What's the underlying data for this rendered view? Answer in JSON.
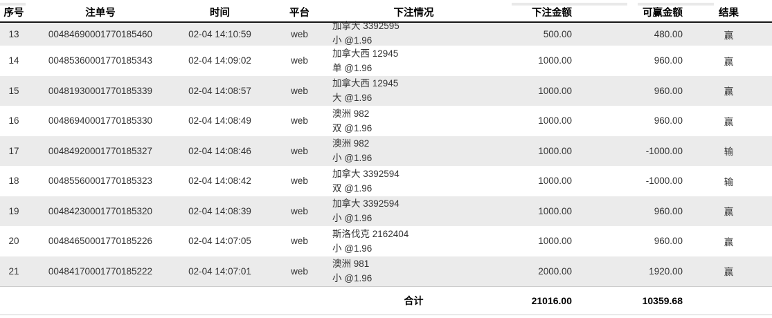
{
  "table": {
    "columns": [
      {
        "key": "seq",
        "label": "序号"
      },
      {
        "key": "bet_id",
        "label": "注单号"
      },
      {
        "key": "time",
        "label": "时间"
      },
      {
        "key": "platform",
        "label": "平台"
      },
      {
        "key": "detail",
        "label": "下注情况"
      },
      {
        "key": "amount",
        "label": "下注金额"
      },
      {
        "key": "winnable",
        "label": "可赢金额"
      },
      {
        "key": "result",
        "label": "结果"
      }
    ],
    "rows": [
      {
        "seq": "13",
        "bet_id": "00484690001770185460",
        "time": "02-04 14:10:59",
        "platform": "web",
        "detail": [
          "加拿大 3392595",
          "小 @1.96"
        ],
        "amount": "500.00",
        "winnable": "480.00",
        "result": "赢"
      },
      {
        "seq": "14",
        "bet_id": "00485360001770185343",
        "time": "02-04 14:09:02",
        "platform": "web",
        "detail": [
          "加拿大西 12945",
          "单 @1.96"
        ],
        "amount": "1000.00",
        "winnable": "960.00",
        "result": "赢"
      },
      {
        "seq": "15",
        "bet_id": "00481930001770185339",
        "time": "02-04 14:08:57",
        "platform": "web",
        "detail": [
          "加拿大西 12945",
          "大 @1.96"
        ],
        "amount": "1000.00",
        "winnable": "960.00",
        "result": "赢"
      },
      {
        "seq": "16",
        "bet_id": "00486940001770185330",
        "time": "02-04 14:08:49",
        "platform": "web",
        "detail": [
          "澳洲 982",
          "双 @1.96"
        ],
        "amount": "1000.00",
        "winnable": "960.00",
        "result": "赢"
      },
      {
        "seq": "17",
        "bet_id": "00484920001770185327",
        "time": "02-04 14:08:46",
        "platform": "web",
        "detail": [
          "澳洲 982",
          "小 @1.96"
        ],
        "amount": "1000.00",
        "winnable": "-1000.00",
        "result": "输"
      },
      {
        "seq": "18",
        "bet_id": "00485560001770185323",
        "time": "02-04 14:08:42",
        "platform": "web",
        "detail": [
          "加拿大 3392594",
          "双 @1.96"
        ],
        "amount": "1000.00",
        "winnable": "-1000.00",
        "result": "输"
      },
      {
        "seq": "19",
        "bet_id": "00484230001770185320",
        "time": "02-04 14:08:39",
        "platform": "web",
        "detail": [
          "加拿大 3392594",
          "小 @1.96"
        ],
        "amount": "1000.00",
        "winnable": "960.00",
        "result": "赢"
      },
      {
        "seq": "20",
        "bet_id": "00484650001770185226",
        "time": "02-04 14:07:05",
        "platform": "web",
        "detail": [
          "斯洛伐克 2162404",
          "小 @1.96"
        ],
        "amount": "1000.00",
        "winnable": "960.00",
        "result": "赢"
      },
      {
        "seq": "21",
        "bet_id": "00484170001770185222",
        "time": "02-04 14:07:01",
        "platform": "web",
        "detail": [
          "澳洲 981",
          "小 @1.96"
        ],
        "amount": "2000.00",
        "winnable": "1920.00",
        "result": "赢"
      }
    ],
    "footer": {
      "total_label": "合计",
      "total_amount": "21016.00",
      "total_winnable": "10359.68"
    }
  },
  "colors": {
    "stripe_row": "#ebebeb",
    "header_border": "#161616",
    "footer_border": "#cccccc",
    "body_text": "#333333"
  }
}
